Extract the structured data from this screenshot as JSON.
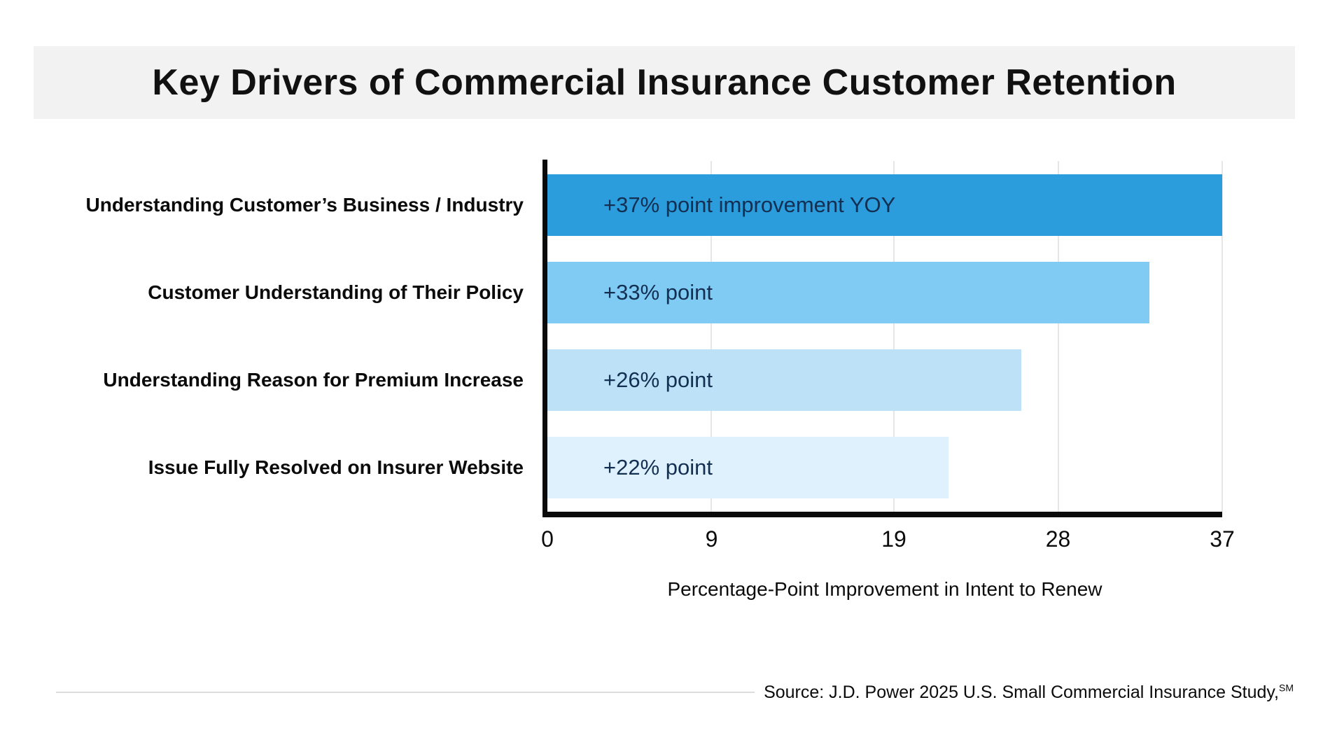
{
  "title": "Key Drivers of Commercial Insurance Customer Retention",
  "chart_data": {
    "type": "bar",
    "orientation": "horizontal",
    "title": "Key Drivers of Commercial Insurance Customer Retention",
    "categories": [
      "Understanding Customer’s Business / Industry",
      "Customer Understanding of Their Policy",
      "Understanding Reason for Premium Increase",
      "Issue Fully Resolved on Insurer Website"
    ],
    "values": [
      37,
      33,
      26,
      22
    ],
    "bar_labels": [
      "+37% point improvement YOY",
      "+33% point",
      "+26% point",
      "+22% point"
    ],
    "bar_colors": [
      "#2b9cdc",
      "#7fcbf3",
      "#bde2f8",
      "#dff1fc"
    ],
    "bar_label_color": "#132f52",
    "xlabel": "Percentage-Point Improvement in Intent to Renew",
    "ylabel": "",
    "xlim": [
      0,
      37
    ],
    "x_ticks": [
      0,
      9,
      19,
      28,
      37
    ],
    "grid": "vertical",
    "gridline_color": "#e6e6e6",
    "legend": "none",
    "background": "#ffffff",
    "title_band_color": "#f2f2f2"
  },
  "source": {
    "text": "Source: J.D. Power 2025 U.S. Small Commercial Insurance Study,",
    "superscript": "SM"
  }
}
